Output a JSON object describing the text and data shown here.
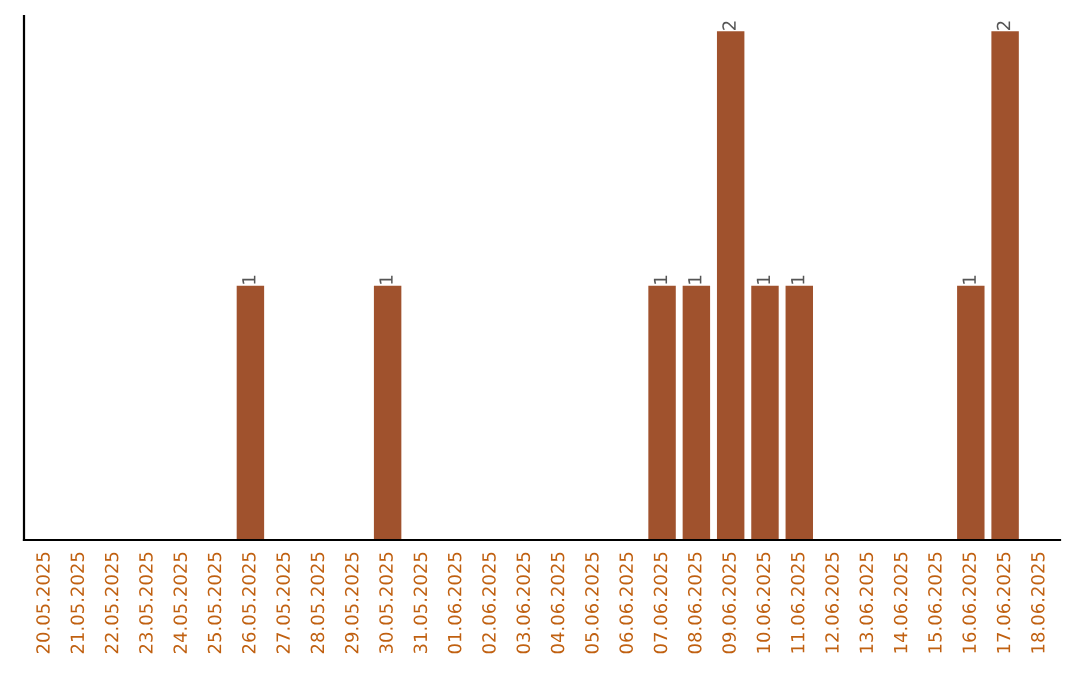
{
  "chart_data": {
    "type": "bar",
    "categories": [
      "20.05.2025",
      "21.05.2025",
      "22.05.2025",
      "23.05.2025",
      "24.05.2025",
      "25.05.2025",
      "26.05.2025",
      "27.05.2025",
      "28.05.2025",
      "29.05.2025",
      "30.05.2025",
      "31.05.2025",
      "01.06.2025",
      "02.06.2025",
      "03.06.2025",
      "04.06.2025",
      "05.06.2025",
      "06.06.2025",
      "07.06.2025",
      "08.06.2025",
      "09.06.2025",
      "10.06.2025",
      "11.06.2025",
      "12.06.2025",
      "13.06.2025",
      "14.06.2025",
      "15.06.2025",
      "16.06.2025",
      "17.06.2025",
      "18.06.2025"
    ],
    "values": [
      0,
      0,
      0,
      0,
      0,
      0,
      1,
      0,
      0,
      0,
      1,
      0,
      0,
      0,
      0,
      0,
      0,
      0,
      1,
      1,
      2,
      1,
      1,
      0,
      0,
      0,
      0,
      1,
      2,
      0
    ],
    "value_labels": [
      null,
      null,
      null,
      null,
      null,
      null,
      "1",
      null,
      null,
      null,
      "1",
      null,
      null,
      null,
      null,
      null,
      null,
      null,
      "1",
      "1",
      "2",
      "1",
      "1",
      null,
      null,
      null,
      null,
      "1",
      "2",
      null
    ],
    "color": "#a0522d",
    "grid": false,
    "legend": false,
    "tick_labels": "x"
  }
}
